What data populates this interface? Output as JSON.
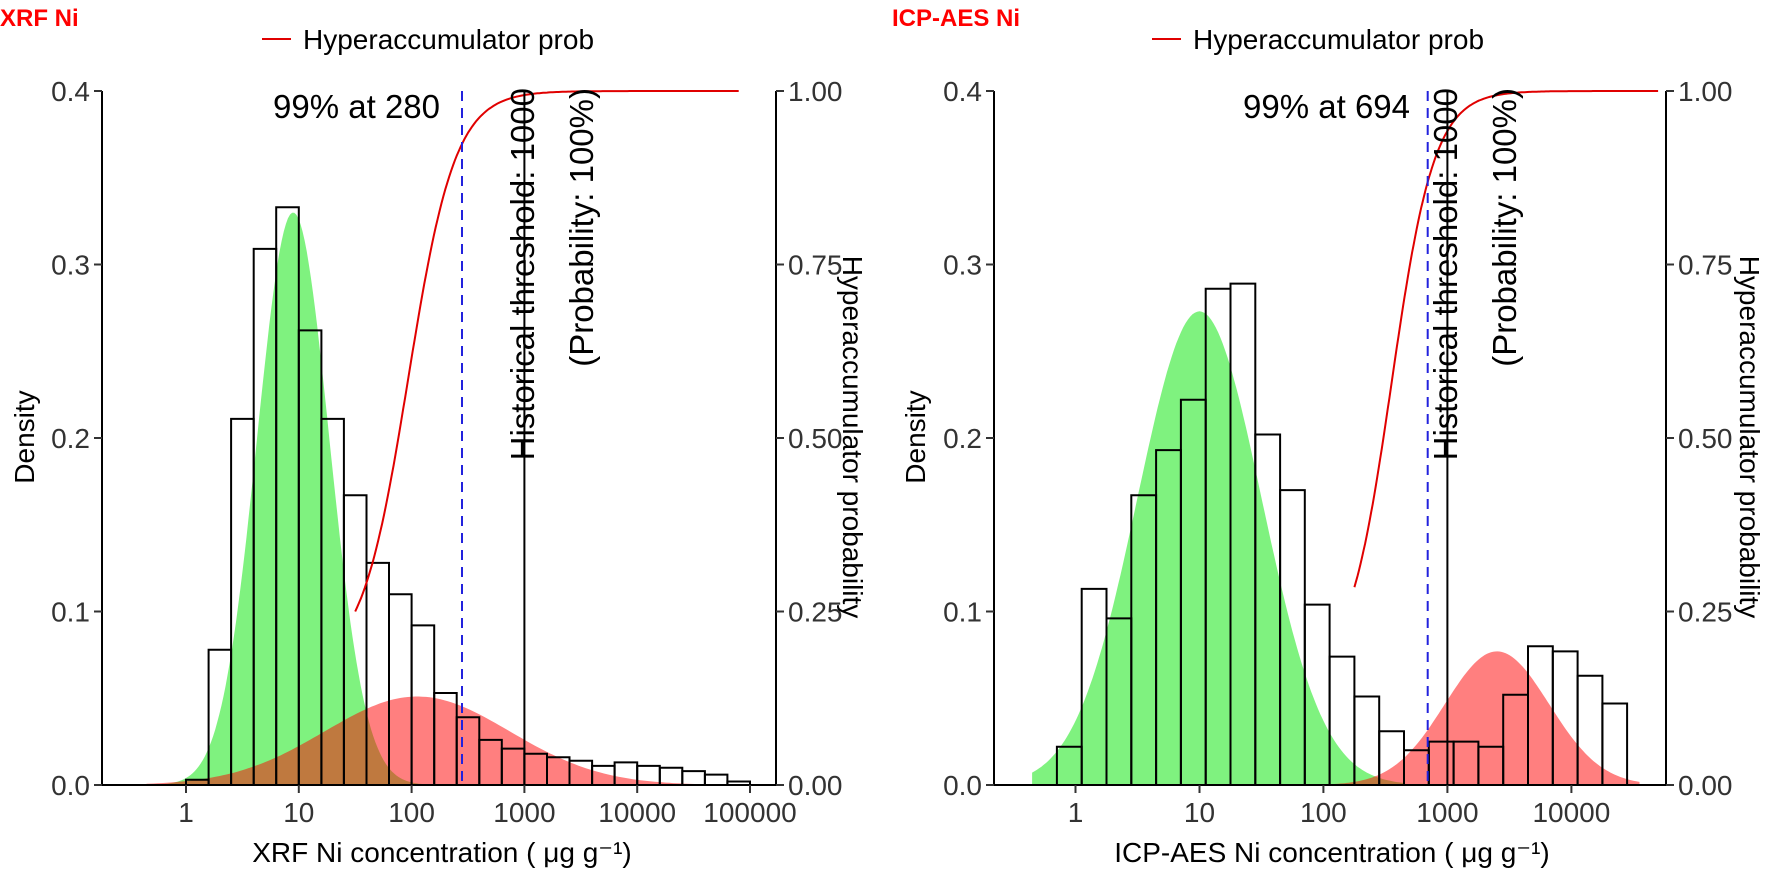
{
  "chart_data": [
    {
      "type": "histogram-density",
      "tag": "XRF Ni",
      "xlabel": "XRF Ni concentration ( μg g⁻¹)",
      "ylabel": "Density",
      "y2label": "Hyperaccumulator probability",
      "x_scale": "log10",
      "xlim": [
        0.18,
        170000
      ],
      "ylim": [
        0,
        0.4
      ],
      "y2lim": [
        0,
        1
      ],
      "x_ticks": [
        1,
        10,
        100,
        1000,
        10000,
        100000
      ],
      "x_tick_labels": [
        "1",
        "10",
        "100",
        "1000",
        "10000",
        "100000"
      ],
      "y_ticks": [
        0,
        0.1,
        0.2,
        0.3,
        0.4
      ],
      "y_tick_labels": [
        "0.0",
        "0.1",
        "0.2",
        "0.3",
        "0.4"
      ],
      "y2_ticks": [
        0,
        0.25,
        0.5,
        0.75,
        1
      ],
      "y2_tick_labels": [
        "0.00",
        "0.25",
        "0.50",
        "0.75",
        "1.00"
      ],
      "legend": {
        "label": "Hyperaccumulator prob",
        "color": "#e00000",
        "position": "top"
      },
      "histogram": {
        "log10_edges": [
          0,
          0.2,
          0.4,
          0.6,
          0.8,
          1.0,
          1.2,
          1.4,
          1.6,
          1.8,
          2.0,
          2.2,
          2.4,
          2.6,
          2.8,
          3.0,
          3.2,
          3.4,
          3.6,
          3.8,
          4.0,
          4.2,
          4.4,
          4.6,
          4.8,
          5.0
        ],
        "density": [
          0.003,
          0.078,
          0.211,
          0.309,
          0.333,
          0.262,
          0.211,
          0.167,
          0.128,
          0.11,
          0.092,
          0.053,
          0.039,
          0.026,
          0.021,
          0.018,
          0.016,
          0.014,
          0.011,
          0.013,
          0.011,
          0.01,
          0.008,
          0.006,
          0.002
        ]
      },
      "components": [
        {
          "name": "green",
          "color": "#00e600",
          "mu_log10": 0.95,
          "sigma_log10": 0.32,
          "peak": 0.33,
          "log10_range": [
            -0.35,
            2.6
          ]
        },
        {
          "name": "red",
          "color": "#ff0000",
          "mu_log10": 2.05,
          "sigma_log10": 0.82,
          "peak": 0.051,
          "log10_range": [
            -0.35,
            4.8
          ]
        }
      ],
      "probability_curve": {
        "color": "#e00000",
        "log10_start": 1.5,
        "p_start": 0.25,
        "log10_end": 4.9,
        "midpoint_log10": 1.97,
        "slope": 4.8
      },
      "cutoff": {
        "value": 280,
        "color": "#2222dd",
        "style": "dashed",
        "label": "99% at 280"
      },
      "threshold": {
        "value": 1000,
        "color": "#000000",
        "label_line1": "Historical threshold: 1000",
        "label_line2": "(Probability: 100%)"
      }
    },
    {
      "type": "histogram-density",
      "tag": "ICP-AES Ni",
      "xlabel": "ICP-AES Ni concentration ( μg g⁻¹)",
      "ylabel": "Density",
      "y2label": "Hyperaccumulator probability",
      "x_scale": "log10",
      "xlim": [
        0.22,
        58000
      ],
      "ylim": [
        0,
        0.4
      ],
      "y2lim": [
        0,
        1
      ],
      "x_ticks": [
        1,
        10,
        100,
        1000,
        10000
      ],
      "x_tick_labels": [
        "1",
        "10",
        "100",
        "1000",
        "10000"
      ],
      "y_ticks": [
        0,
        0.1,
        0.2,
        0.3,
        0.4
      ],
      "y_tick_labels": [
        "0.0",
        "0.1",
        "0.2",
        "0.3",
        "0.4"
      ],
      "y2_ticks": [
        0,
        0.25,
        0.5,
        0.75,
        1
      ],
      "y2_tick_labels": [
        "0.00",
        "0.25",
        "0.50",
        "0.75",
        "1.00"
      ],
      "legend": {
        "label": "Hyperaccumulator prob",
        "color": "#e00000",
        "position": "top"
      },
      "histogram": {
        "log10_edges": [
          -0.15,
          0.05,
          0.25,
          0.45,
          0.65,
          0.85,
          1.05,
          1.25,
          1.45,
          1.65,
          1.85,
          2.05,
          2.25,
          2.45,
          2.65,
          2.85,
          3.05,
          3.25,
          3.45,
          3.65,
          3.85,
          4.05,
          4.25,
          4.45
        ],
        "density": [
          0.022,
          0.113,
          0.096,
          0.167,
          0.193,
          0.222,
          0.286,
          0.289,
          0.202,
          0.17,
          0.104,
          0.074,
          0.051,
          0.031,
          0.02,
          0.025,
          0.025,
          0.022,
          0.052,
          0.08,
          0.077,
          0.063,
          0.047
        ]
      },
      "components": [
        {
          "name": "green",
          "color": "#00e600",
          "mu_log10": 1.0,
          "sigma_log10": 0.5,
          "peak": 0.273,
          "log10_range": [
            -0.35,
            2.65
          ]
        },
        {
          "name": "red",
          "color": "#ff0000",
          "mu_log10": 3.4,
          "sigma_log10": 0.42,
          "peak": 0.077,
          "log10_range": [
            1.85,
            4.55
          ]
        }
      ],
      "probability_curve": {
        "color": "#e00000",
        "log10_start": 2.25,
        "p_start": 0.285,
        "log10_end": 4.7,
        "midpoint_log10": 2.55,
        "slope": 5.8
      },
      "cutoff": {
        "value": 694,
        "color": "#2222dd",
        "style": "dashed",
        "label": "99% at 694"
      },
      "threshold": {
        "value": 1000,
        "color": "#000000",
        "label_line1": "Historical threshold: 1000",
        "label_line2": "(Probability: 100%)"
      }
    }
  ]
}
